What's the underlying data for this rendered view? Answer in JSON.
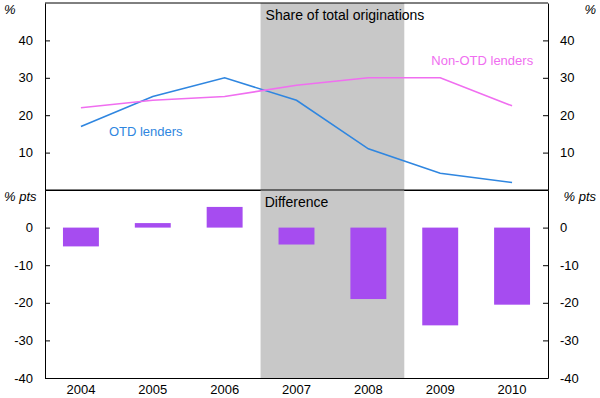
{
  "chart_data": [
    {
      "type": "line",
      "title": "Share of total originations",
      "ylabel": "%",
      "categories": [
        "2004",
        "2005",
        "2006",
        "2007",
        "2008",
        "2009",
        "2010"
      ],
      "series": [
        {
          "name": "OTD lenders",
          "color": "#2f86e0",
          "values": [
            17,
            25,
            30,
            24,
            11,
            4.5,
            2
          ]
        },
        {
          "name": "Non-OTD lenders",
          "color": "#f06ef0",
          "values": [
            22,
            24,
            25,
            28,
            30,
            30,
            22.5
          ]
        }
      ],
      "ylim": [
        0,
        50
      ],
      "yticks": [
        10,
        20,
        30,
        40
      ],
      "tick_labels": "y",
      "shaded": [
        "2007",
        "2008"
      ]
    },
    {
      "type": "bar",
      "title": "Difference",
      "ylabel": "% pts",
      "categories": [
        "2004",
        "2005",
        "2006",
        "2007",
        "2008",
        "2009",
        "2010"
      ],
      "values": [
        -5,
        1.2,
        5.5,
        -4.5,
        -19,
        -26,
        -20.5
      ],
      "color": "#a64cf0",
      "ylim": [
        -40,
        10
      ],
      "yticks": [
        -40,
        -30,
        -20,
        -10,
        0
      ],
      "shaded": [
        "2007",
        "2008"
      ]
    }
  ]
}
